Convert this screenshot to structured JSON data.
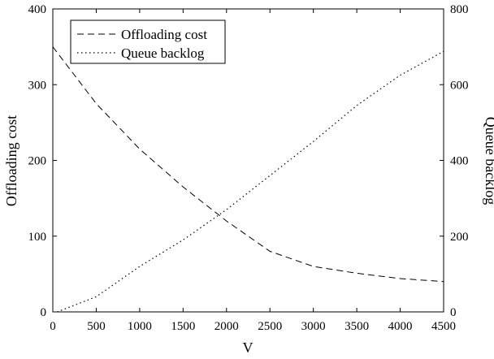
{
  "chart_data": {
    "type": "line",
    "xlabel": "V",
    "ylabel_left": "Offloading cost",
    "ylabel_right": "Queue backlog",
    "xlim": [
      0,
      4500
    ],
    "ylim_left": [
      0,
      400
    ],
    "ylim_right": [
      0,
      800
    ],
    "xticks": [
      "0",
      "500",
      "1000",
      "1500",
      "2000",
      "2500",
      "3000",
      "3500",
      "4000",
      "4500"
    ],
    "yticks_left": [
      "0",
      "100",
      "200",
      "300",
      "400"
    ],
    "yticks_right": [
      "0",
      "200",
      "400",
      "600",
      "800"
    ],
    "grid": false,
    "legend_position": "top-left",
    "series": [
      {
        "name": "Offloading cost",
        "axis": "left",
        "style": "dashed",
        "color": "#000000",
        "x": [
          0,
          500,
          1000,
          1500,
          2000,
          2500,
          3000,
          3500,
          4000,
          4500
        ],
        "values": [
          350,
          275,
          215,
          165,
          120,
          80,
          60,
          51,
          44,
          40
        ]
      },
      {
        "name": "Queue backlog",
        "axis": "right",
        "style": "dotted",
        "color": "#000000",
        "x": [
          50,
          500,
          1000,
          1500,
          2000,
          2500,
          3000,
          3500,
          4000,
          4500
        ],
        "values": [
          0,
          40,
          120,
          190,
          270,
          360,
          450,
          545,
          625,
          688
        ]
      }
    ]
  }
}
